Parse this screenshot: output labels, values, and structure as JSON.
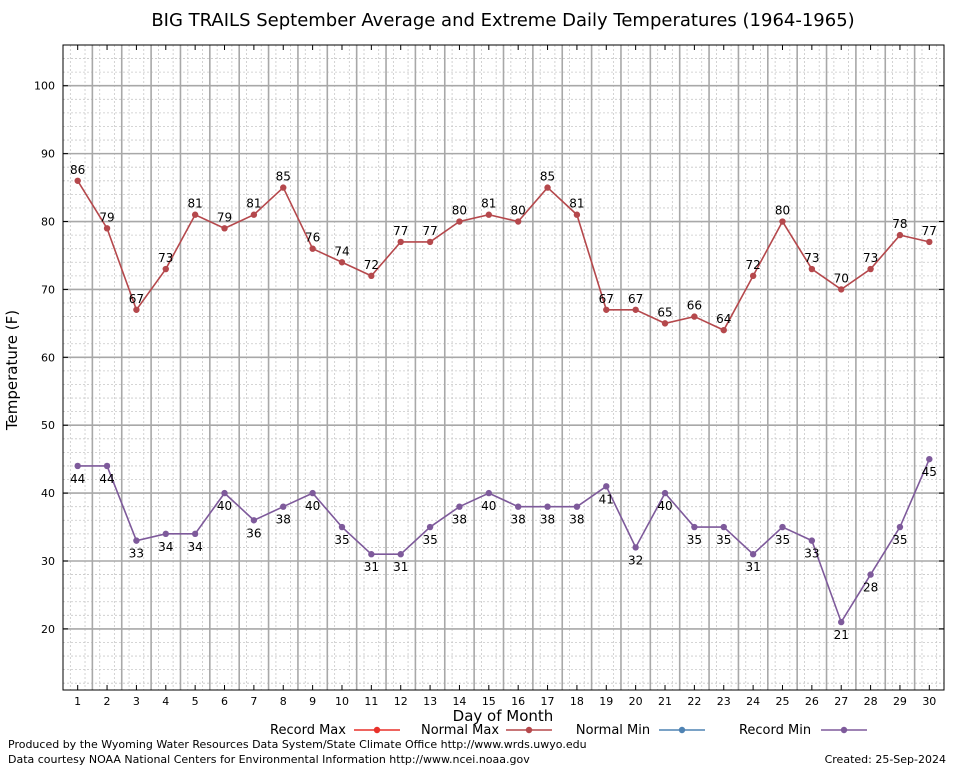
{
  "chart_data": {
    "type": "line",
    "title": "BIG TRAILS September Average and Extreme Daily Temperatures (1964-1965)",
    "xlabel": "Day of Month",
    "ylabel": "Temperature (F)",
    "x": [
      1,
      2,
      3,
      4,
      5,
      6,
      7,
      8,
      9,
      10,
      11,
      12,
      13,
      14,
      15,
      16,
      17,
      18,
      19,
      20,
      21,
      22,
      23,
      24,
      25,
      26,
      27,
      28,
      29,
      30
    ],
    "xlim": [
      0.5,
      30.5
    ],
    "ylim": [
      11,
      106
    ],
    "yticks": [
      20,
      30,
      40,
      50,
      60,
      70,
      80,
      90,
      100
    ],
    "grid": true,
    "legend_position": "bottom",
    "legend": [
      {
        "name": "Record Max",
        "color": "#e8312a"
      },
      {
        "name": "Normal Max",
        "color": "#b5484c"
      },
      {
        "name": "Normal Min",
        "color": "#4f83b3"
      },
      {
        "name": "Record Min",
        "color": "#7e5a9b"
      }
    ],
    "series": [
      {
        "name": "Normal Max",
        "color": "#b5484c",
        "values": [
          86,
          79,
          67,
          73,
          81,
          79,
          81,
          85,
          76,
          74,
          72,
          77,
          77,
          80,
          81,
          80,
          85,
          81,
          67,
          67,
          65,
          66,
          64,
          72,
          80,
          73,
          70,
          73,
          78,
          77
        ],
        "label_position": "above"
      },
      {
        "name": "Record Min",
        "color": "#7e5a9b",
        "values": [
          44,
          44,
          33,
          34,
          34,
          40,
          36,
          38,
          40,
          35,
          31,
          31,
          35,
          38,
          40,
          38,
          38,
          38,
          41,
          32,
          40,
          35,
          35,
          31,
          35,
          33,
          21,
          28,
          35,
          45
        ],
        "label_position": "below"
      }
    ]
  },
  "footer": {
    "produced": "Produced by the Wyoming Water Resources Data System/State Climate Office http://www.wrds.uwyo.edu",
    "courtesy": "Data courtesy NOAA National Centers for Environmental Information http://www.ncei.noaa.gov",
    "created": "Created:  25-Sep-2024"
  }
}
